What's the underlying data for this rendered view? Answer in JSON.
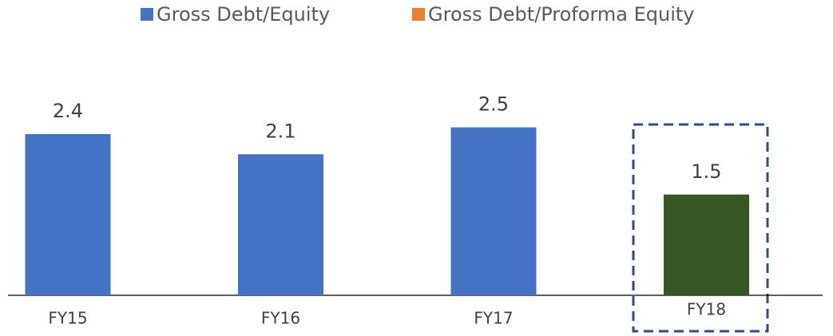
{
  "chart_data": {
    "type": "bar",
    "categories": [
      "FY15",
      "FY16",
      "FY17",
      "FY18"
    ],
    "series": [
      {
        "name": "Gross Debt/Equity",
        "color": "#4472c4",
        "values": [
          2.4,
          2.1,
          2.5,
          null
        ]
      },
      {
        "name": "Gross Debt/Proforma Equity",
        "color": "#ed7d31",
        "bar_color": "#375623",
        "values": [
          null,
          null,
          null,
          1.5
        ]
      }
    ],
    "ylim": [
      0,
      3.6
    ],
    "legend": "top"
  }
}
